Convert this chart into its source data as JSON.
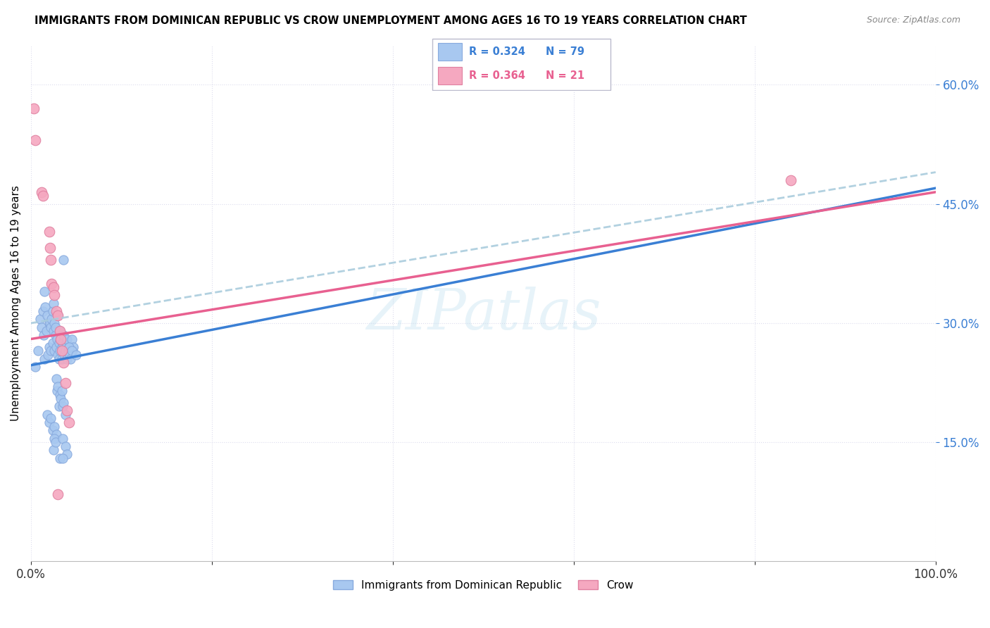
{
  "title": "IMMIGRANTS FROM DOMINICAN REPUBLIC VS CROW UNEMPLOYMENT AMONG AGES 16 TO 19 YEARS CORRELATION CHART",
  "source": "Source: ZipAtlas.com",
  "ylabel": "Unemployment Among Ages 16 to 19 years",
  "yticks": [
    "15.0%",
    "30.0%",
    "45.0%",
    "60.0%"
  ],
  "ytick_vals": [
    0.15,
    0.3,
    0.45,
    0.6
  ],
  "legend_blue_r": "0.324",
  "legend_blue_n": "79",
  "legend_pink_r": "0.364",
  "legend_pink_n": "21",
  "legend_blue_label": "Immigrants from Dominican Republic",
  "legend_pink_label": "Crow",
  "blue_color": "#A8C8F0",
  "pink_color": "#F5A8C0",
  "blue_line_color": "#3A7FD4",
  "pink_line_color": "#E86090",
  "gray_dash_color": "#AACCDD",
  "blue_scatter": [
    [
      0.005,
      0.245
    ],
    [
      0.008,
      0.265
    ],
    [
      0.01,
      0.305
    ],
    [
      0.012,
      0.295
    ],
    [
      0.013,
      0.315
    ],
    [
      0.014,
      0.285
    ],
    [
      0.015,
      0.34
    ],
    [
      0.015,
      0.255
    ],
    [
      0.016,
      0.32
    ],
    [
      0.017,
      0.29
    ],
    [
      0.018,
      0.31
    ],
    [
      0.019,
      0.26
    ],
    [
      0.02,
      0.3
    ],
    [
      0.02,
      0.27
    ],
    [
      0.021,
      0.3
    ],
    [
      0.022,
      0.295
    ],
    [
      0.022,
      0.265
    ],
    [
      0.023,
      0.305
    ],
    [
      0.024,
      0.275
    ],
    [
      0.024,
      0.315
    ],
    [
      0.025,
      0.325
    ],
    [
      0.025,
      0.29
    ],
    [
      0.026,
      0.3
    ],
    [
      0.026,
      0.265
    ],
    [
      0.027,
      0.285
    ],
    [
      0.027,
      0.295
    ],
    [
      0.028,
      0.27
    ],
    [
      0.029,
      0.28
    ],
    [
      0.03,
      0.31
    ],
    [
      0.03,
      0.26
    ],
    [
      0.031,
      0.255
    ],
    [
      0.031,
      0.275
    ],
    [
      0.032,
      0.265
    ],
    [
      0.032,
      0.29
    ],
    [
      0.033,
      0.28
    ],
    [
      0.034,
      0.27
    ],
    [
      0.034,
      0.255
    ],
    [
      0.035,
      0.275
    ],
    [
      0.036,
      0.285
    ],
    [
      0.037,
      0.26
    ],
    [
      0.038,
      0.265
    ],
    [
      0.039,
      0.275
    ],
    [
      0.04,
      0.28
    ],
    [
      0.04,
      0.255
    ],
    [
      0.041,
      0.265
    ],
    [
      0.042,
      0.27
    ],
    [
      0.043,
      0.26
    ],
    [
      0.044,
      0.255
    ],
    [
      0.045,
      0.28
    ],
    [
      0.046,
      0.265
    ],
    [
      0.047,
      0.27
    ],
    [
      0.028,
      0.23
    ],
    [
      0.029,
      0.215
    ],
    [
      0.03,
      0.22
    ],
    [
      0.031,
      0.195
    ],
    [
      0.032,
      0.21
    ],
    [
      0.033,
      0.205
    ],
    [
      0.034,
      0.215
    ],
    [
      0.035,
      0.195
    ],
    [
      0.036,
      0.2
    ],
    [
      0.018,
      0.185
    ],
    [
      0.02,
      0.175
    ],
    [
      0.022,
      0.18
    ],
    [
      0.024,
      0.165
    ],
    [
      0.026,
      0.17
    ],
    [
      0.028,
      0.16
    ],
    [
      0.025,
      0.14
    ],
    [
      0.026,
      0.155
    ],
    [
      0.027,
      0.15
    ],
    [
      0.035,
      0.155
    ],
    [
      0.038,
      0.145
    ],
    [
      0.04,
      0.135
    ],
    [
      0.032,
      0.13
    ],
    [
      0.035,
      0.13
    ],
    [
      0.038,
      0.185
    ],
    [
      0.042,
      0.27
    ],
    [
      0.045,
      0.265
    ],
    [
      0.05,
      0.26
    ],
    [
      0.036,
      0.38
    ]
  ],
  "pink_scatter": [
    [
      0.003,
      0.57
    ],
    [
      0.005,
      0.53
    ],
    [
      0.012,
      0.465
    ],
    [
      0.013,
      0.46
    ],
    [
      0.02,
      0.415
    ],
    [
      0.021,
      0.395
    ],
    [
      0.022,
      0.38
    ],
    [
      0.023,
      0.35
    ],
    [
      0.025,
      0.345
    ],
    [
      0.026,
      0.335
    ],
    [
      0.028,
      0.315
    ],
    [
      0.03,
      0.31
    ],
    [
      0.032,
      0.29
    ],
    [
      0.033,
      0.28
    ],
    [
      0.034,
      0.265
    ],
    [
      0.036,
      0.25
    ],
    [
      0.038,
      0.225
    ],
    [
      0.04,
      0.19
    ],
    [
      0.042,
      0.175
    ],
    [
      0.84,
      0.48
    ],
    [
      0.03,
      0.085
    ]
  ],
  "blue_line": [
    0.0,
    0.247,
    1.0,
    0.47
  ],
  "pink_line": [
    0.0,
    0.28,
    1.0,
    0.465
  ],
  "gray_dash_line": [
    0.0,
    0.3,
    1.0,
    0.49
  ],
  "xlim": [
    0.0,
    1.0
  ],
  "ylim": [
    0.0,
    0.65
  ],
  "xtick_left": "0.0%",
  "xtick_right": "100.0%"
}
